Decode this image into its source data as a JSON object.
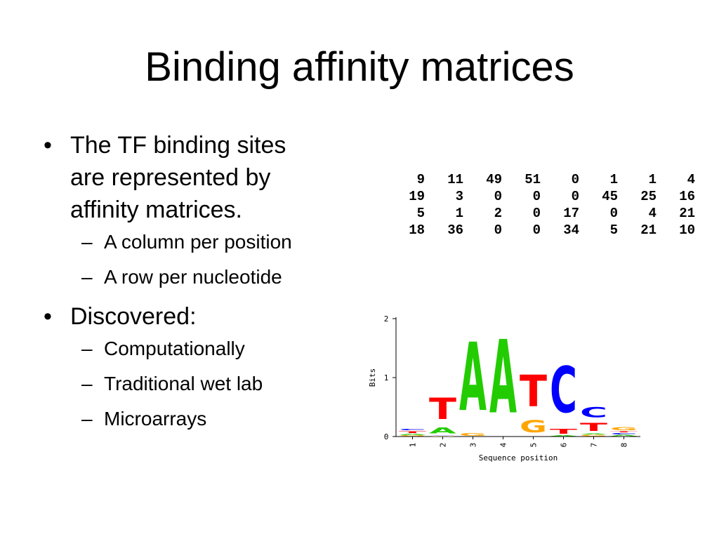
{
  "slide": {
    "title": "Binding affinity matrices",
    "bullets": [
      {
        "text": "The TF binding sites are  represented by affinity matrices.",
        "lines": [
          "The TF binding sites",
          "are  represented by",
          "affinity matrices."
        ],
        "subitems": [
          "A column per position",
          "A row per nucleotide"
        ]
      },
      {
        "text": "Discovered:",
        "lines": [
          "Discovered:"
        ],
        "subitems": [
          "Computationally",
          "Traditional wet lab",
          "Microarrays"
        ]
      }
    ],
    "bullet_symbol": "•",
    "dash_symbol": "–",
    "matrix": [
      [
        "9",
        "11",
        "49",
        "51",
        "0",
        "1",
        "1",
        "4"
      ],
      [
        "19",
        "3",
        "0",
        "0",
        "0",
        "45",
        "25",
        "16"
      ],
      [
        "5",
        "1",
        "2",
        "0",
        "17",
        "0",
        "4",
        "21"
      ],
      [
        "18",
        "36",
        "0",
        "0",
        "34",
        "5",
        "21",
        "10"
      ]
    ]
  },
  "chart_data": {
    "type": "sequence-logo",
    "xlabel": "Sequence position",
    "ylabel": "Bits",
    "ylim": [
      0,
      2
    ],
    "yticks": [
      "0",
      "1",
      "2"
    ],
    "positions": [
      "1",
      "2",
      "3",
      "4",
      "5",
      "6",
      "7",
      "8"
    ],
    "letter_colors": {
      "A": "#22cc00",
      "C": "#0000ff",
      "G": "#ffa500",
      "T": "#ff0000"
    },
    "stacks": [
      [
        {
          "letter": "G",
          "bits": 0.02
        },
        {
          "letter": "A",
          "bits": 0.03
        },
        {
          "letter": "T",
          "bits": 0.05
        },
        {
          "letter": "C",
          "bits": 0.04
        }
      ],
      [
        {
          "letter": "G",
          "bits": 0.01
        },
        {
          "letter": "C",
          "bits": 0.01
        },
        {
          "letter": "A",
          "bits": 0.16
        },
        {
          "letter": "T",
          "bits": 0.58
        }
      ],
      [
        {
          "letter": "G",
          "bits": 0.07
        },
        {
          "letter": "A",
          "bits": 1.86
        }
      ],
      [
        {
          "letter": "A",
          "bits": 2.0
        }
      ],
      [
        {
          "letter": "G",
          "bits": 0.34
        },
        {
          "letter": "T",
          "bits": 0.86
        }
      ],
      [
        {
          "letter": "A",
          "bits": 0.02
        },
        {
          "letter": "T",
          "bits": 0.14
        },
        {
          "letter": "C",
          "bits": 1.26
        }
      ],
      [
        {
          "letter": "G",
          "bits": 0.03
        },
        {
          "letter": "A",
          "bits": 0.02
        },
        {
          "letter": "T",
          "bits": 0.22
        },
        {
          "letter": "C",
          "bits": 0.27
        }
      ],
      [
        {
          "letter": "A",
          "bits": 0.03
        },
        {
          "letter": "C",
          "bits": 0.04
        },
        {
          "letter": "T",
          "bits": 0.02
        },
        {
          "letter": "G",
          "bits": 0.09
        }
      ]
    ]
  }
}
